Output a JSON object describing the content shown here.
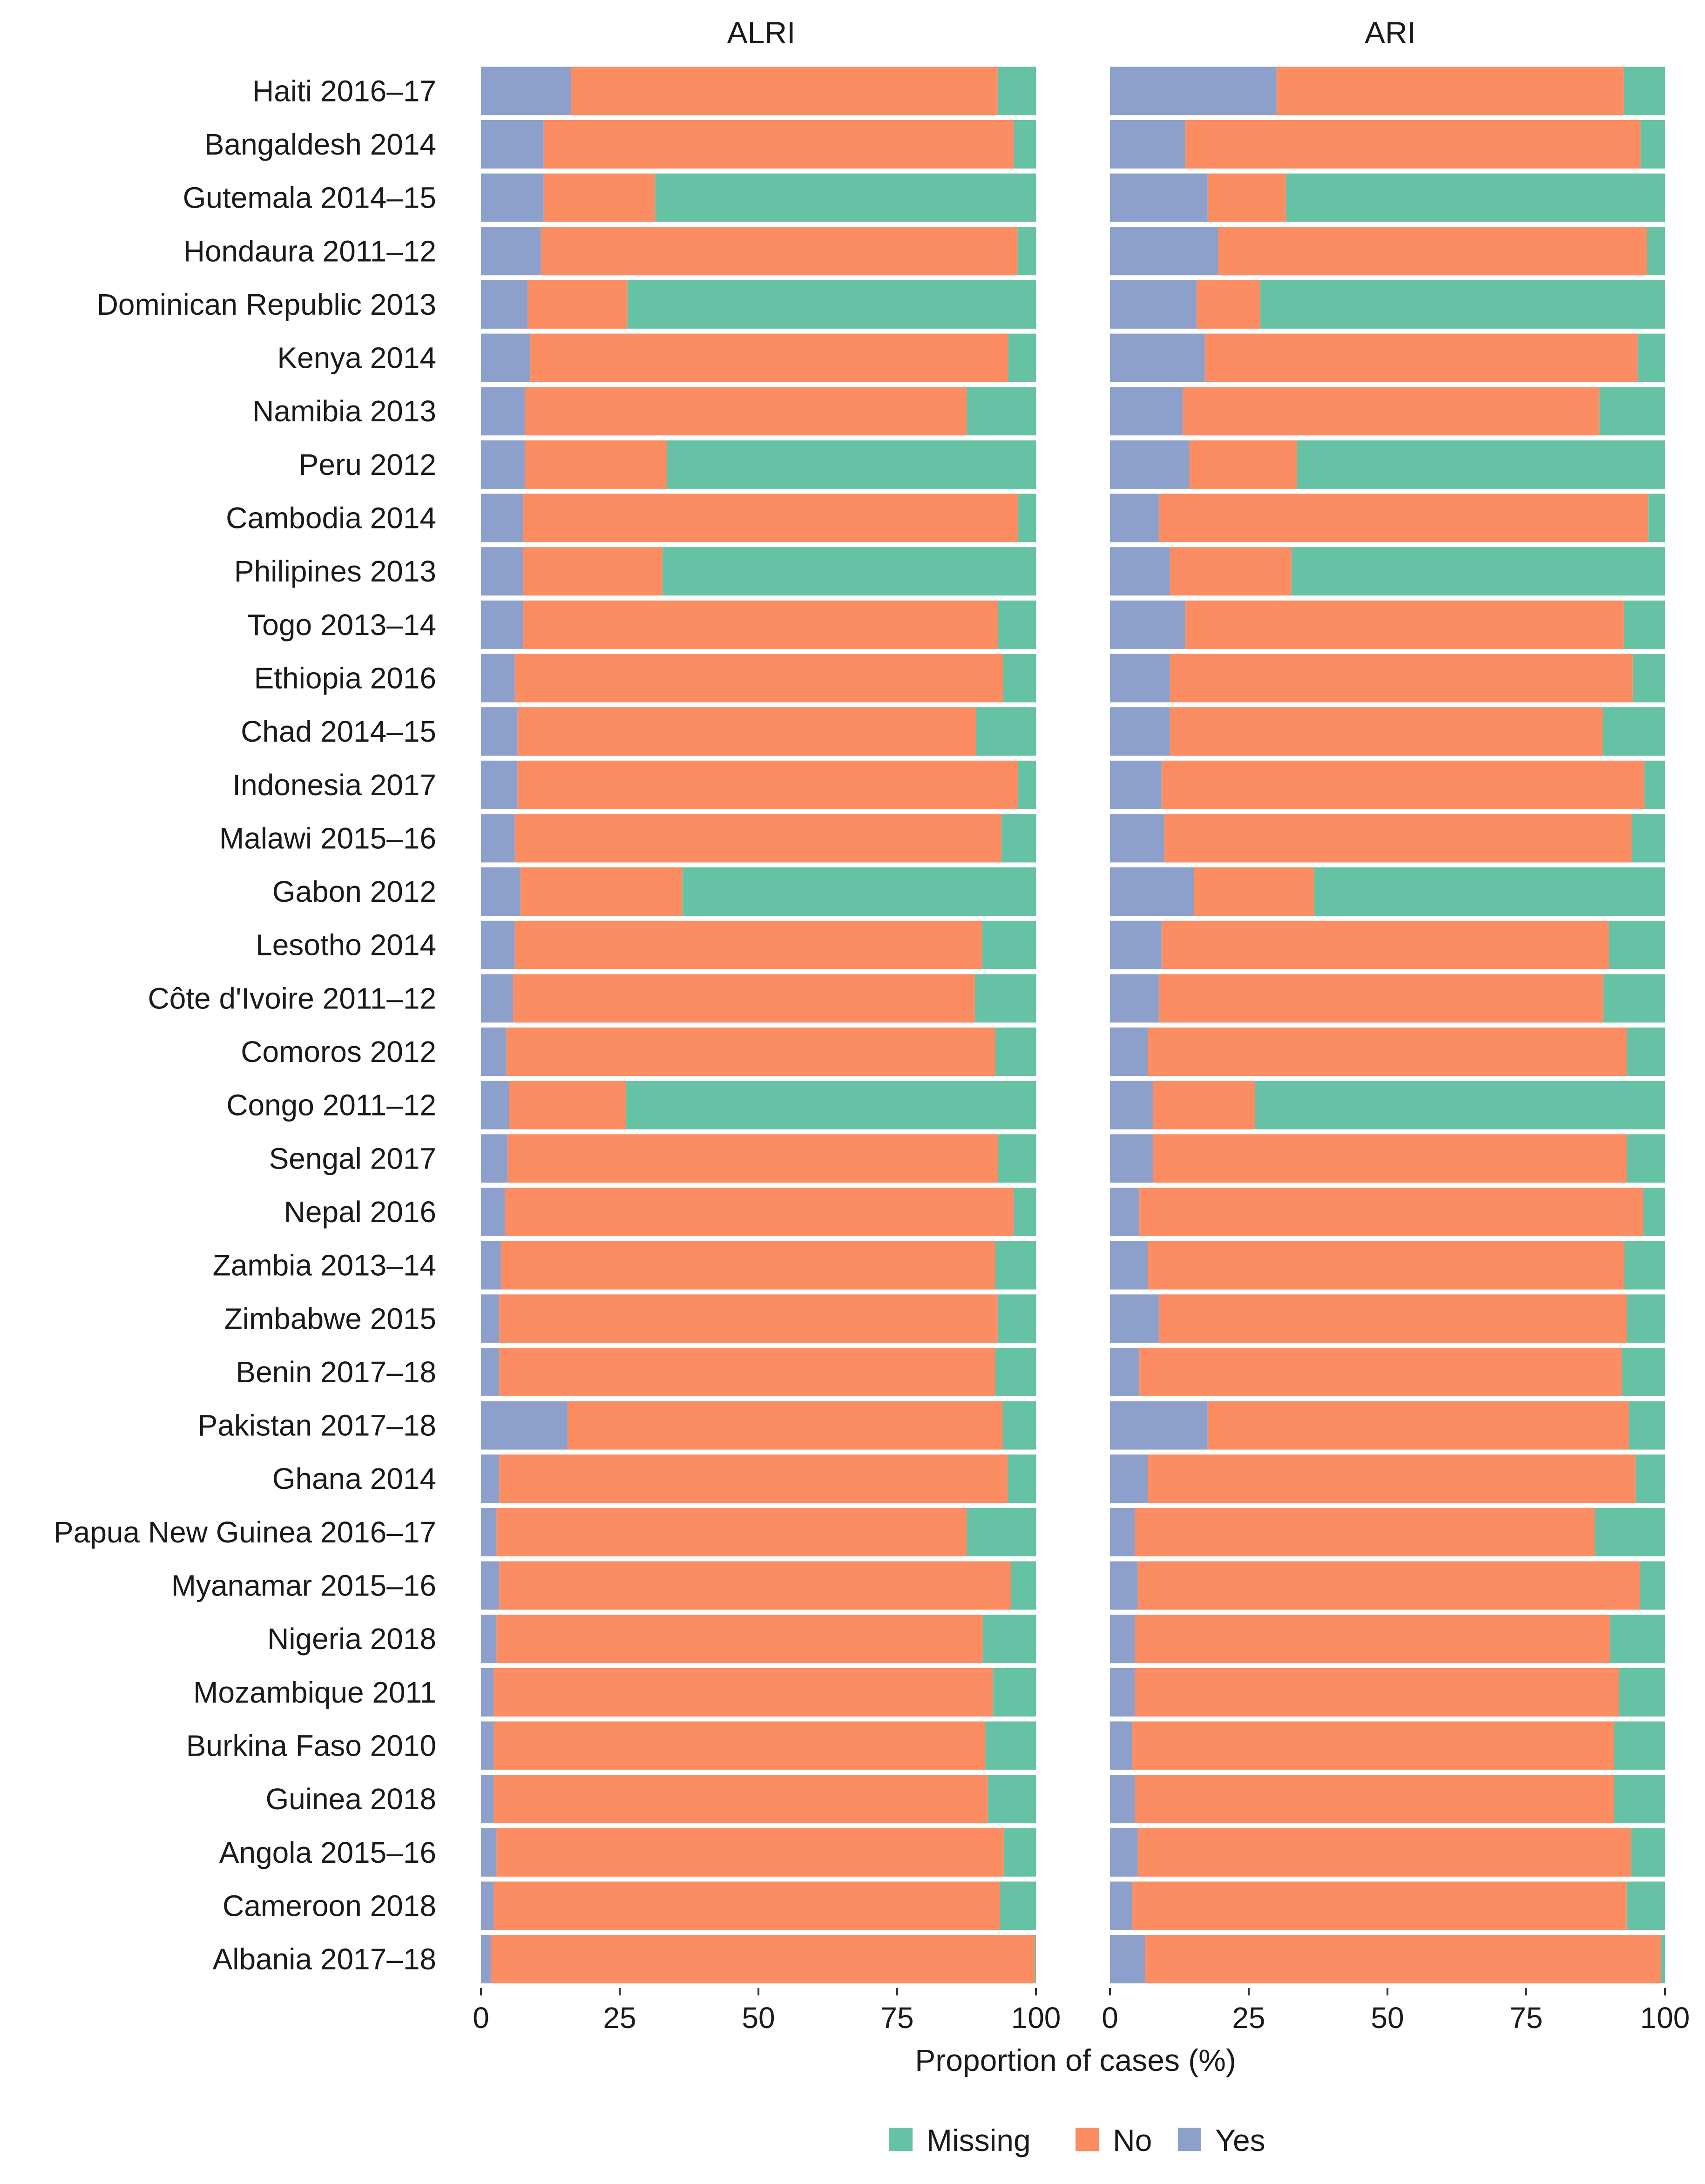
{
  "chart_data": {
    "type": "bar",
    "orientation": "horizontal",
    "stacked": true,
    "xlabel": "Proportion of cases (%)",
    "xlim": [
      0,
      100
    ],
    "xticks": [
      0,
      25,
      50,
      75,
      100
    ],
    "xtick_labels": [
      "0",
      "25",
      "50",
      "75",
      "100"
    ],
    "legend": {
      "placement": "bottom",
      "entries": [
        {
          "name": "Missing",
          "color": "#66c2a5"
        },
        {
          "name": "No",
          "color": "#fc8d62"
        },
        {
          "name": "Yes",
          "color": "#8da0cb"
        }
      ]
    },
    "stack_order": [
      "Yes",
      "No",
      "Missing"
    ],
    "categories": [
      "Haiti 2016–17",
      "Bangaldesh 2014",
      "Gutemala 2014–15",
      "Hondaura 2011–12",
      "Dominican Republic 2013",
      "Kenya 2014",
      "Namibia 2013",
      "Peru 2012",
      "Cambodia 2014",
      "Philipines 2013",
      "Togo 2013–14",
      "Ethiopia 2016",
      "Chad 2014–15",
      "Indonesia 2017",
      "Malawi 2015–16",
      "Gabon 2012",
      "Lesotho 2014",
      "Côte d'Ivoire 2011–12",
      "Comoros 2012",
      "Congo 2011–12",
      "Sengal 2017",
      "Nepal 2016",
      "Zambia 2013–14",
      "Zimbabwe 2015",
      "Benin 2017–18",
      "Pakistan 2017–18",
      "Ghana 2014",
      "Papua New Guinea 2016–17",
      "Myanamar 2015–16",
      "Nigeria 2018",
      "Mozambique 2011",
      "Burkina Faso 2010",
      "Guinea 2018",
      "Angola 2015–16",
      "Cameroon 2018",
      "Albania 2017–18"
    ],
    "facets": [
      {
        "title": "ALRI",
        "series": [
          {
            "name": "Yes",
            "values": [
              16.2,
              11.3,
              11.3,
              10.8,
              8.4,
              8.9,
              7.9,
              7.9,
              7.6,
              7.6,
              7.6,
              6.1,
              6.6,
              6.6,
              6.1,
              7.1,
              6.1,
              5.8,
              4.6,
              5.1,
              4.8,
              4.3,
              3.6,
              3.3,
              3.3,
              15.6,
              3.3,
              2.8,
              3.3,
              2.8,
              2.3,
              2.3,
              2.3,
              2.8,
              2.3,
              1.8
            ]
          },
          {
            "name": "No",
            "values": [
              76.9,
              84.7,
              20.1,
              85.9,
              18.0,
              86.1,
              79.6,
              25.6,
              89.2,
              25.1,
              85.6,
              88.0,
              82.6,
              90.2,
              87.7,
              29.2,
              84.2,
              83.2,
              88.1,
              21.0,
              88.4,
              91.7,
              89.1,
              89.8,
              89.4,
              78.4,
              91.6,
              84.7,
              92.2,
              87.6,
              90.0,
              88.6,
              89.0,
              91.4,
              91.2,
              98.0
            ]
          },
          {
            "name": "Missing",
            "values": [
              6.9,
              4.0,
              68.6,
              3.3,
              73.6,
              5.0,
              12.5,
              66.5,
              3.2,
              67.3,
              6.8,
              5.9,
              10.8,
              3.2,
              6.2,
              63.7,
              9.7,
              11.0,
              7.3,
              73.9,
              6.8,
              4.0,
              7.3,
              6.9,
              7.3,
              6.0,
              5.1,
              12.5,
              4.5,
              9.6,
              7.7,
              9.1,
              8.7,
              5.8,
              6.5,
              0.2
            ]
          }
        ]
      },
      {
        "title": "ARI",
        "series": [
          {
            "name": "Yes",
            "values": [
              30.0,
              13.6,
              17.6,
              19.5,
              15.6,
              17.1,
              13.1,
              14.3,
              8.8,
              10.8,
              13.6,
              10.8,
              10.8,
              9.3,
              9.8,
              15.1,
              9.3,
              8.8,
              6.8,
              7.8,
              7.8,
              5.3,
              6.8,
              8.8,
              5.3,
              17.6,
              6.8,
              4.5,
              5.0,
              4.5,
              4.5,
              4.0,
              4.5,
              5.0,
              4.0,
              6.3
            ]
          },
          {
            "name": "No",
            "values": [
              62.6,
              82.0,
              14.1,
              77.3,
              11.5,
              78.0,
              75.1,
              19.4,
              88.2,
              21.9,
              79.0,
              83.4,
              78.0,
              87.0,
              84.2,
              21.7,
              80.6,
              80.1,
              86.4,
              18.3,
              85.4,
              90.8,
              85.9,
              84.4,
              86.9,
              75.9,
              87.9,
              82.9,
              90.5,
              85.6,
              87.2,
              86.8,
              86.3,
              88.9,
              89.1,
              93.0
            ]
          },
          {
            "name": "Missing",
            "values": [
              7.4,
              4.4,
              68.3,
              3.2,
              72.9,
              4.9,
              11.8,
              66.3,
              3.0,
              67.3,
              7.4,
              5.8,
              11.2,
              3.7,
              6.0,
              63.2,
              10.1,
              11.1,
              6.8,
              73.9,
              6.8,
              3.9,
              7.3,
              6.8,
              7.8,
              6.5,
              5.3,
              12.6,
              4.5,
              9.9,
              8.3,
              9.2,
              9.2,
              6.1,
              6.9,
              0.7
            ]
          }
        ]
      }
    ]
  }
}
